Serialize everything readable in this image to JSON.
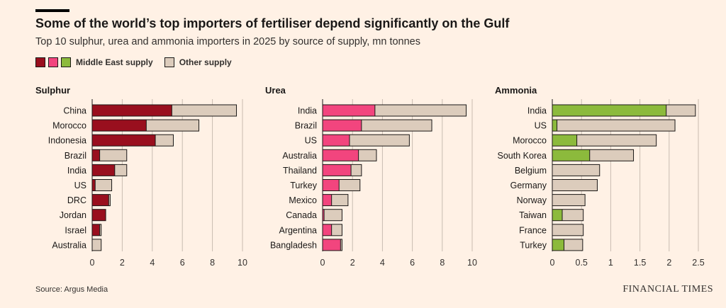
{
  "header": {
    "title": "Some of the world’s top importers of fertiliser depend significantly on the Gulf",
    "subtitle": "Top 10 sulphur, urea and ammonia importers in 2025 by source of supply, mn tonnes"
  },
  "legend": {
    "middle_east_label": "Middle East supply",
    "other_label": "Other supply"
  },
  "colors": {
    "sulphur": "#990f1e",
    "urea": "#f2457e",
    "ammonia": "#8cba3c",
    "other": "#dcccbc",
    "outline": "#1a1817",
    "grid": "#c8bcb0",
    "background": "#fff1e5"
  },
  "chart_data": [
    {
      "type": "bar",
      "orientation": "horizontal",
      "stacked": true,
      "title": "Sulphur",
      "categories": [
        "China",
        "Morocco",
        "Indonesia",
        "Brazil",
        "India",
        "US",
        "DRC",
        "Jordan",
        "Israel",
        "Australia"
      ],
      "series": [
        {
          "name": "Middle East supply",
          "values": [
            5.3,
            3.6,
            4.2,
            0.5,
            1.5,
            0.2,
            1.1,
            0.9,
            0.5,
            0.0
          ]
        },
        {
          "name": "Other supply",
          "values": [
            4.3,
            3.5,
            1.2,
            1.8,
            0.8,
            1.1,
            0.1,
            0.0,
            0.1,
            0.6
          ]
        }
      ],
      "xlim": [
        0,
        10
      ],
      "xticks": [
        "0",
        "2",
        "4",
        "6",
        "8",
        "10"
      ],
      "xtick_values": [
        0,
        2,
        4,
        6,
        8,
        10
      ]
    },
    {
      "type": "bar",
      "orientation": "horizontal",
      "stacked": true,
      "title": "Urea",
      "categories": [
        "India",
        "Brazil",
        "US",
        "Australia",
        "Thailand",
        "Turkey",
        "Mexico",
        "Canada",
        "Argentina",
        "Bangladesh"
      ],
      "series": [
        {
          "name": "Middle East supply",
          "values": [
            3.5,
            2.6,
            1.8,
            2.4,
            1.9,
            1.1,
            0.6,
            0.1,
            0.6,
            1.2
          ]
        },
        {
          "name": "Other supply",
          "values": [
            6.1,
            4.7,
            4.0,
            1.2,
            0.7,
            1.4,
            1.1,
            1.2,
            0.7,
            0.1
          ]
        }
      ],
      "xlim": [
        0,
        10
      ],
      "xticks": [
        "0",
        "2",
        "4",
        "6",
        "8",
        "10"
      ],
      "xtick_values": [
        0,
        2,
        4,
        6,
        8,
        10
      ]
    },
    {
      "type": "bar",
      "orientation": "horizontal",
      "stacked": true,
      "title": "Ammonia",
      "categories": [
        "India",
        "US",
        "Morocco",
        "South Korea",
        "Belgium",
        "Germany",
        "Norway",
        "Taiwan",
        "France",
        "Turkey"
      ],
      "series": [
        {
          "name": "Middle East supply",
          "values": [
            1.95,
            0.08,
            0.42,
            0.64,
            0.0,
            0.0,
            0.0,
            0.17,
            0.0,
            0.2
          ]
        },
        {
          "name": "Other supply",
          "values": [
            0.5,
            2.02,
            1.36,
            0.75,
            0.81,
            0.77,
            0.56,
            0.36,
            0.53,
            0.32
          ]
        }
      ],
      "xlim": [
        0,
        2.5
      ],
      "xticks": [
        "0",
        "0.5",
        "1",
        "1.5",
        "2",
        "2.5"
      ],
      "xtick_values": [
        0,
        0.5,
        1,
        1.5,
        2,
        2.5
      ]
    }
  ],
  "footer": {
    "source": "Source: Argus Media",
    "brand": "FINANCIAL TIMES"
  }
}
